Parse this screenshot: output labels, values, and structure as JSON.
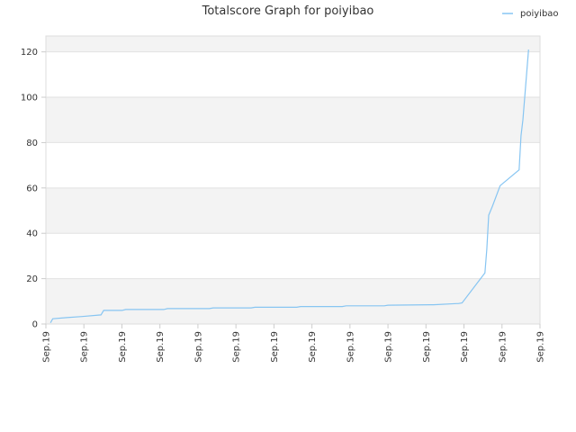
{
  "chart_data": {
    "type": "line",
    "title": "Totalscore Graph for poiyibao",
    "xlabel": "",
    "ylabel": "",
    "x_tick_labels": [
      "Sep.19",
      "Sep.19",
      "Sep.19",
      "Sep.19",
      "Sep.19",
      "Sep.19",
      "Sep.19",
      "Sep.19",
      "Sep.19",
      "Sep.19",
      "Sep.19",
      "Sep.19",
      "Sep.19",
      "Sep.19"
    ],
    "y_ticks": [
      0,
      20,
      40,
      60,
      80,
      100,
      120
    ],
    "ylim": [
      0,
      127
    ],
    "xlim": [
      0,
      13
    ],
    "legend": {
      "position": "top-right"
    },
    "grid": true,
    "series": [
      {
        "name": "poiyibao",
        "color": "#87c5f2",
        "x": [
          0.12,
          0.18,
          0.55,
          0.95,
          1.45,
          1.52,
          2.0,
          2.1,
          3.1,
          3.2,
          4.3,
          4.4,
          5.4,
          5.5,
          6.6,
          6.7,
          7.8,
          7.9,
          8.9,
          9.0,
          10.1,
          10.2,
          10.8,
          10.85,
          10.95,
          11.55,
          11.6,
          11.65,
          11.75,
          11.95,
          12.45,
          12.5,
          12.55,
          12.7
        ],
        "y": [
          0.5,
          2.3,
          2.8,
          3.3,
          4.0,
          6.0,
          6.0,
          6.4,
          6.4,
          6.8,
          6.8,
          7.1,
          7.1,
          7.4,
          7.4,
          7.7,
          7.7,
          8.0,
          8.0,
          8.3,
          8.5,
          8.5,
          9.0,
          9.0,
          9.3,
          22.5,
          33.0,
          48.0,
          52.0,
          61.0,
          68.0,
          83.0,
          90.0,
          121.0
        ]
      }
    ]
  }
}
